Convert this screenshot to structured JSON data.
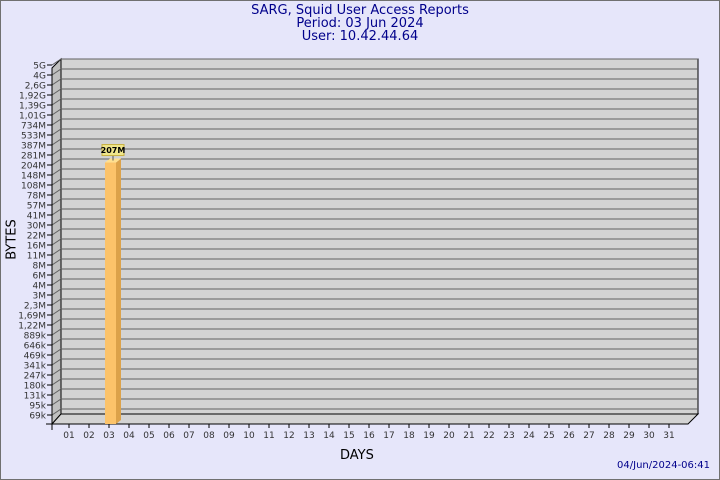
{
  "header": {
    "title": "SARG, Squid User Access Reports",
    "period": "Period: 03 Jun 2024",
    "user": "User: 10.42.44.64"
  },
  "footer": {
    "timestamp": "04/Jun/2024-06:41"
  },
  "chart_data": {
    "type": "bar",
    "style": "3d",
    "xlabel": "DAYS",
    "ylabel": "BYTES",
    "y_scale": "log",
    "grid": true,
    "categories": [
      "01",
      "02",
      "03",
      "04",
      "05",
      "06",
      "07",
      "08",
      "09",
      "10",
      "11",
      "12",
      "13",
      "14",
      "15",
      "16",
      "17",
      "18",
      "19",
      "20",
      "21",
      "22",
      "23",
      "24",
      "25",
      "26",
      "27",
      "28",
      "29",
      "30",
      "31"
    ],
    "y_tick_labels": [
      "5G",
      "4G",
      "2,6G",
      "1,92G",
      "1,39G",
      "1,01G",
      "734M",
      "533M",
      "387M",
      "281M",
      "204M",
      "148M",
      "108M",
      "78M",
      "57M",
      "41M",
      "30M",
      "22M",
      "16M",
      "11M",
      "8M",
      "6M",
      "4M",
      "3M",
      "2,3M",
      "1,69M",
      "1,22M",
      "889k",
      "646k",
      "469k",
      "341k",
      "247k",
      "180k",
      "131k",
      "95k",
      "69k"
    ],
    "y_tick_values": [
      5000000000.0,
      4000000000.0,
      2600000000.0,
      1920000000.0,
      1390000000.0,
      1010000000.0,
      734000000.0,
      533000000.0,
      387000000.0,
      281000000.0,
      204000000.0,
      148000000.0,
      108000000.0,
      78000000.0,
      57000000.0,
      41000000.0,
      30000000.0,
      22000000.0,
      16000000.0,
      11000000.0,
      8000000.0,
      6000000.0,
      4000000.0,
      3000000.0,
      2300000.0,
      1690000.0,
      1220000.0,
      889000.0,
      646000.0,
      469000.0,
      341000.0,
      247000.0,
      180000.0,
      131000.0,
      95000.0,
      69000.0
    ],
    "bars": [
      {
        "category": "03",
        "value": 207000000,
        "label": "207M"
      }
    ],
    "colors": {
      "bar_front": "#fcc36a",
      "bar_side": "#dca24a",
      "bar_top": "#ffe090",
      "label_bg": "#f0e68c",
      "wall": "#d3d3d3",
      "side_wall": "#c0c0c0",
      "grid": "#606060"
    }
  }
}
